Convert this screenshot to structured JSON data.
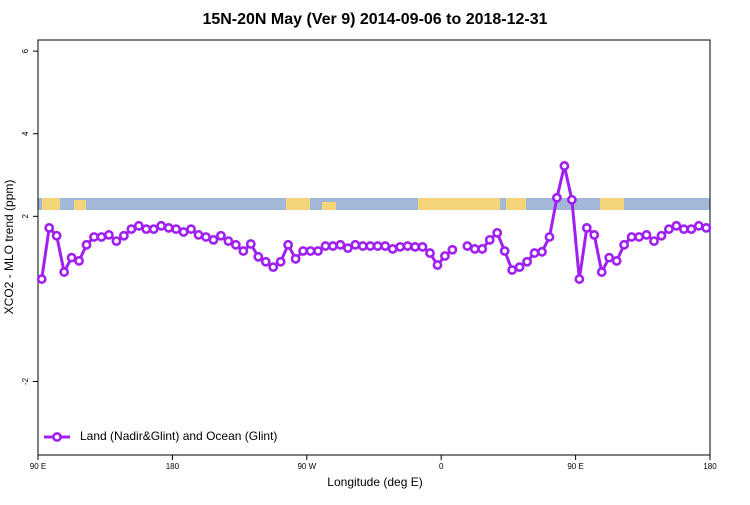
{
  "chart_data": {
    "type": "line",
    "title": "15N-20N May (Ver 9)   2014-09-06 to 2018-12-31",
    "xlabel": "Longitude (deg E)",
    "ylabel": "XCO2 - MLO trend (ppm)",
    "x": [
      92.5,
      97.5,
      102.5,
      107.5,
      112.5,
      117.5,
      122.5,
      127.5,
      132.5,
      137.5,
      142.5,
      147.5,
      152.5,
      157.5,
      162.5,
      167.5,
      172.5,
      177.5,
      182.5,
      187.5,
      192.5,
      197.5,
      202.5,
      207.5,
      212.5,
      217.5,
      222.5,
      227.5,
      232.5,
      237.5,
      242.5,
      247.5,
      252.5,
      257.5,
      262.5,
      267.5,
      272.5,
      277.5,
      282.5,
      287.5,
      292.5,
      297.5,
      302.5,
      307.5,
      312.5,
      317.5,
      322.5,
      327.5,
      332.5,
      337.5,
      342.5,
      347.5,
      352.5,
      357.5,
      362.5,
      367.5,
      372.5,
      377.5,
      382.5,
      387.5,
      392.5,
      397.5,
      402.5,
      407.5,
      412.5,
      417.5,
      422.5,
      427.5,
      432.5,
      437.5,
      442.5,
      447.5,
      452.5,
      457.5,
      462.5,
      467.5,
      472.5,
      477.5,
      482.5,
      487.5,
      492.5,
      497.5,
      502.5,
      507.5,
      512.5,
      517.5,
      522.5,
      527.5,
      532.5,
      537.5
    ],
    "series": [
      {
        "name": "Land (Nadir&Glint) and Ocean (Glint)",
        "color": "#a020f0",
        "values": [
          0.48,
          1.72,
          1.53,
          0.65,
          1.0,
          0.92,
          1.31,
          1.5,
          1.5,
          1.55,
          1.4,
          1.53,
          1.69,
          1.77,
          1.69,
          1.69,
          1.77,
          1.72,
          1.69,
          1.62,
          1.69,
          1.55,
          1.5,
          1.43,
          1.53,
          1.4,
          1.31,
          1.16,
          1.33,
          1.02,
          0.9,
          0.77,
          0.9,
          1.31,
          0.97,
          1.16,
          1.16,
          1.16,
          1.28,
          1.28,
          1.31,
          1.23,
          1.31,
          1.28,
          1.28,
          1.28,
          1.28,
          1.21,
          1.26,
          1.28,
          1.26,
          1.26,
          1.11,
          0.82,
          1.04,
          1.19,
          null,
          1.28,
          1.21,
          1.21,
          1.43,
          1.6,
          1.16,
          0.7,
          0.77,
          0.9,
          1.11,
          1.14,
          1.5,
          2.45,
          3.22,
          2.4,
          0.48,
          1.72,
          1.55,
          0.65,
          1.0,
          0.92,
          1.31,
          1.5,
          1.5,
          1.55,
          1.4,
          1.53,
          1.69,
          1.77,
          1.69,
          1.69,
          1.77,
          1.72
        ]
      }
    ],
    "xlim": [
      90,
      540
    ],
    "xticks": [
      {
        "value": 90,
        "label": "90 E"
      },
      {
        "value": 180,
        "label": "180"
      },
      {
        "value": 270,
        "label": "90 W"
      },
      {
        "value": 360,
        "label": "0"
      },
      {
        "value": 450,
        "label": "90 E"
      },
      {
        "value": 540,
        "label": "180"
      }
    ],
    "ylim": [
      -3.78,
      6.27
    ],
    "yticks": [
      -2,
      2,
      4,
      6
    ],
    "legend": "bottomleft"
  }
}
